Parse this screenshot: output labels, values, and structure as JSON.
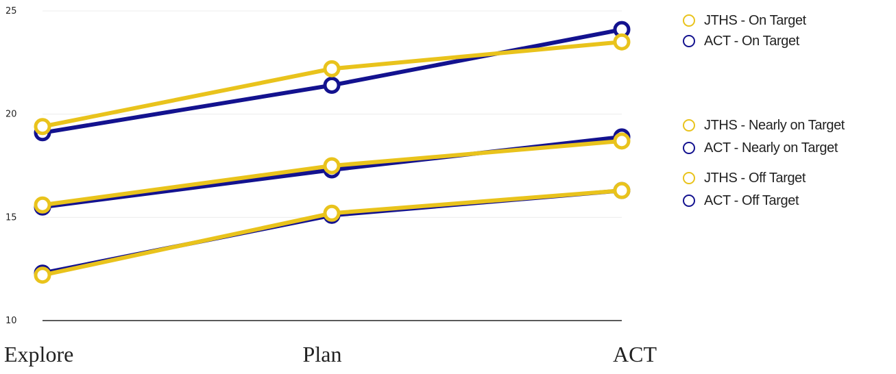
{
  "chart_data": {
    "type": "line",
    "categories": [
      "Explore",
      "Plan",
      "ACT"
    ],
    "ylim": [
      10,
      25
    ],
    "yticks": [
      10,
      15,
      20,
      25
    ],
    "grid": true,
    "legend_position": "right",
    "colors": {
      "JTHS": "#e9c31c",
      "ACT": "#13128f"
    },
    "series": [
      {
        "name": "JTHS - On Target",
        "color": "#e9c31c",
        "values": [
          19.4,
          22.2,
          23.5
        ]
      },
      {
        "name": "ACT - On Target",
        "color": "#13128f",
        "values": [
          19.1,
          21.4,
          24.1
        ]
      },
      {
        "name": "JTHS - Nearly on Target",
        "color": "#e9c31c",
        "values": [
          15.6,
          17.5,
          18.7
        ]
      },
      {
        "name": "ACT - Nearly on Target",
        "color": "#13128f",
        "values": [
          15.5,
          17.3,
          18.9
        ]
      },
      {
        "name": "JTHS - Off Target",
        "color": "#e9c31c",
        "values": [
          12.2,
          15.2,
          16.3
        ]
      },
      {
        "name": "ACT - Off Target",
        "color": "#13128f",
        "values": [
          12.3,
          15.1,
          16.3
        ]
      }
    ]
  }
}
